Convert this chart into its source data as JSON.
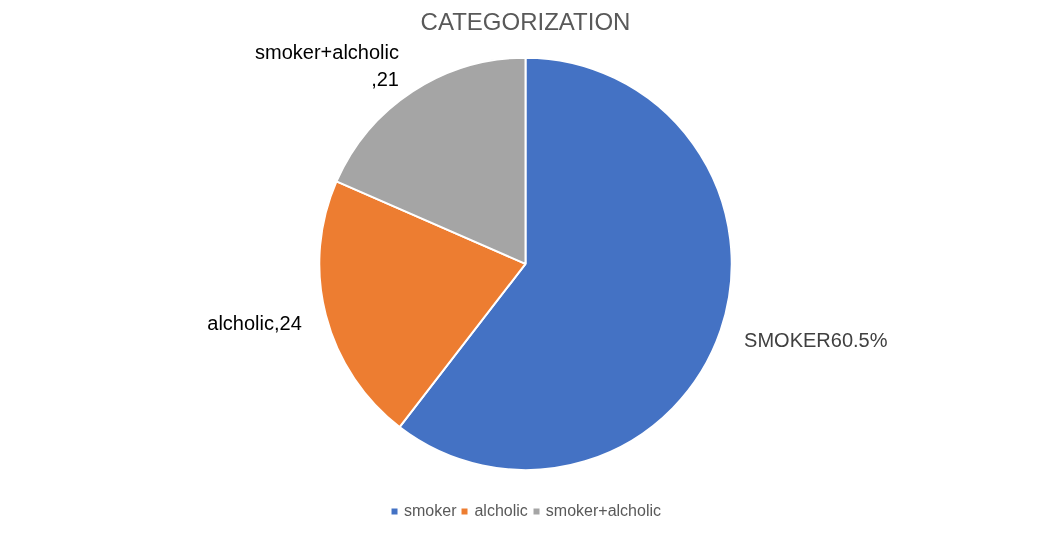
{
  "chart_data": {
    "type": "pie",
    "title": "CATEGORIZATION",
    "categories": [
      "smoker",
      "alcholic",
      "smoker+alcholic"
    ],
    "values": [
      68.8,
      24,
      21
    ],
    "colors": [
      "#4472c4",
      "#ed7d31",
      "#a5a5a5"
    ],
    "value_labels": [
      "SMOKER60.5%",
      "alcholic,24",
      "smoker+alcholic\n,21"
    ],
    "legend": "bottom"
  }
}
